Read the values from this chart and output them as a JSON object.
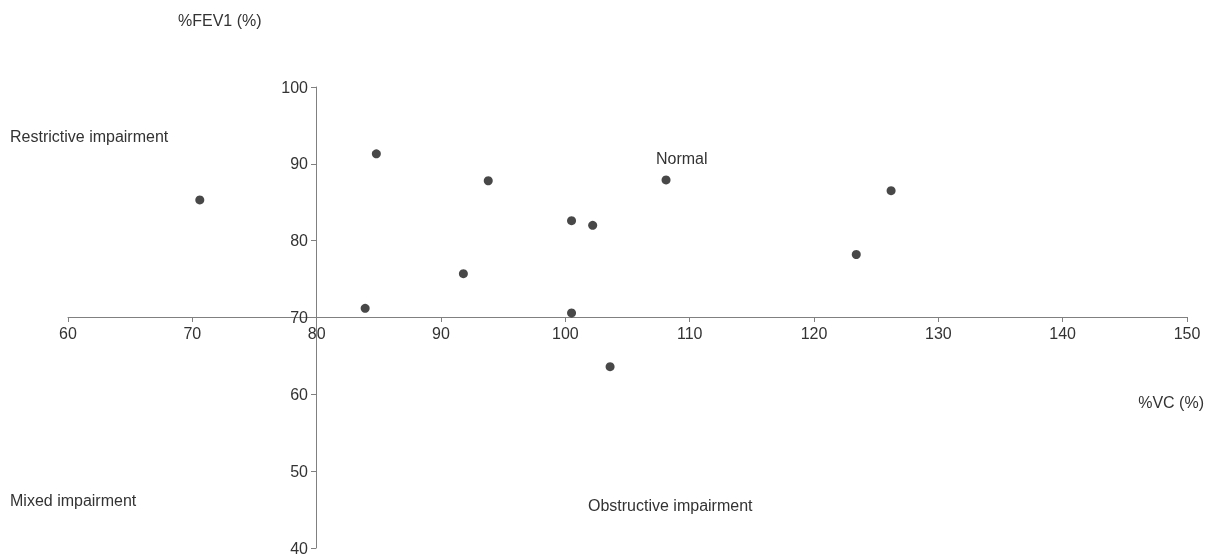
{
  "chart_data": {
    "type": "scatter",
    "xlabel": "%VC (%)",
    "ylabel": "%FEV1 (%)",
    "x": [
      70.6,
      84.8,
      93.8,
      100.5,
      102.2,
      108.1,
      91.8,
      83.9,
      100.5,
      103.6,
      123.4,
      126.2
    ],
    "values": [
      85.3,
      91.3,
      87.8,
      82.6,
      82.0,
      87.9,
      75.7,
      71.2,
      70.6,
      63.6,
      78.2,
      86.5
    ],
    "color": "#1a1a1a",
    "marker": "circle",
    "xlim": [
      60,
      150
    ],
    "xticks": [
      60,
      70,
      80,
      90,
      100,
      110,
      120,
      130,
      140,
      150
    ],
    "ylim": [
      40,
      100
    ],
    "yticks": [
      40,
      50,
      60,
      70,
      80,
      90,
      100
    ],
    "annotations": [
      "Restrictive impairment",
      "Normal",
      "Mixed impairment",
      "Obstructive impairment"
    ],
    "grid": false
  }
}
